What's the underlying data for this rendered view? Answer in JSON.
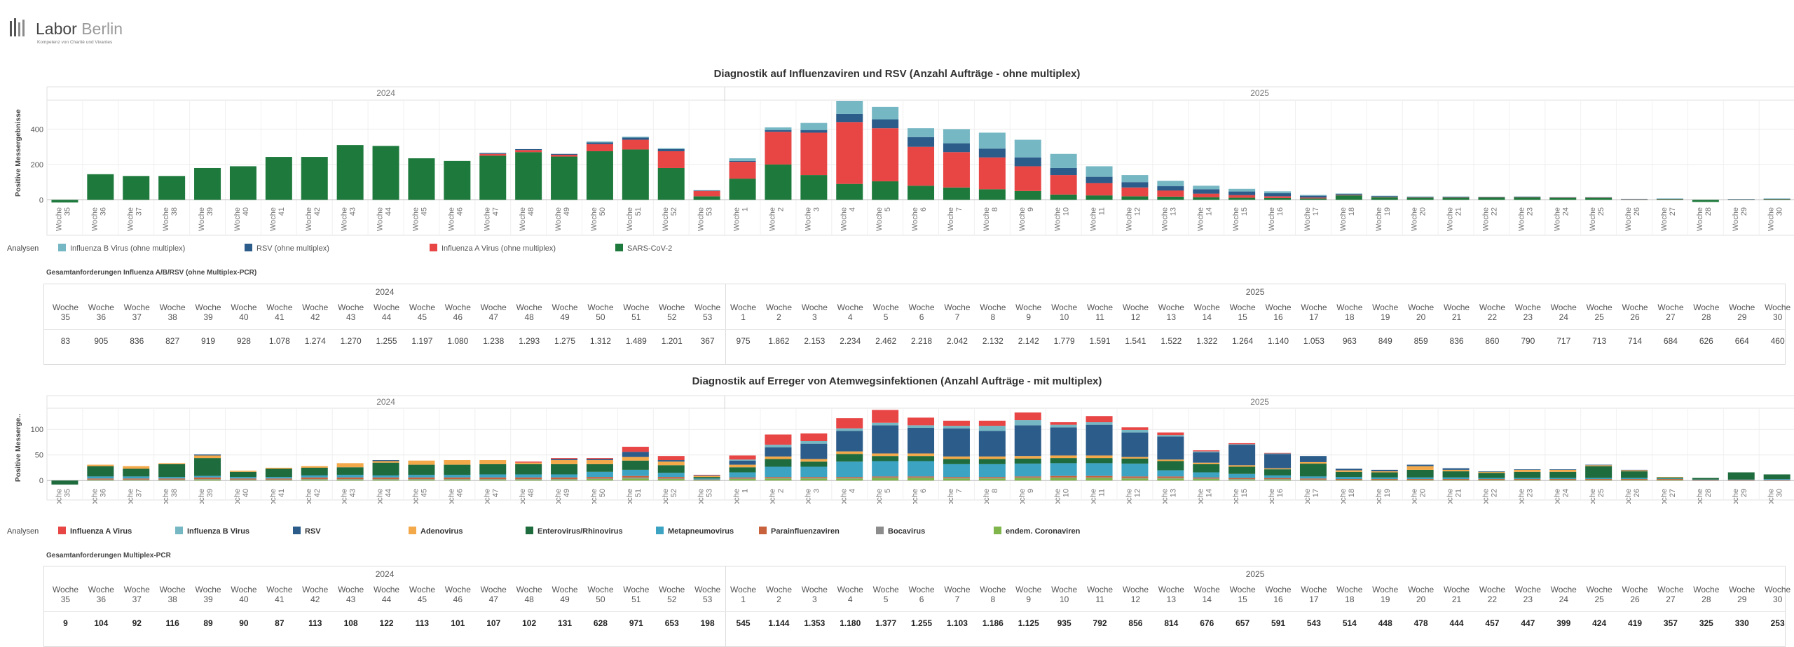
{
  "logo": {
    "name_a": "Labor",
    "name_b": "Berlin",
    "tagline": "Kompetenz von Charité und Vivantes"
  },
  "chart1": {
    "title": "Diagnostik auf Influenzaviren und RSV (Anzahl Aufträge - ohne multiplex)",
    "legend_label": "Analysen"
  },
  "table1": {
    "caption": "Gesamtanforderungen Influenza A/B/RSV (ohne Multiplex-PCR)",
    "values": [
      "83",
      "905",
      "836",
      "827",
      "919",
      "928",
      "1.078",
      "1.274",
      "1.270",
      "1.255",
      "1.197",
      "1.080",
      "1.238",
      "1.293",
      "1.275",
      "1.312",
      "1.489",
      "1.201",
      "367",
      "975",
      "1.862",
      "2.153",
      "2.234",
      "2.462",
      "2.218",
      "2.042",
      "2.132",
      "2.142",
      "1.779",
      "1.591",
      "1.541",
      "1.522",
      "1.322",
      "1.264",
      "1.140",
      "1.053",
      "963",
      "849",
      "859",
      "836",
      "860",
      "790",
      "717",
      "713",
      "714",
      "684",
      "626",
      "664",
      "460"
    ]
  },
  "chart2": {
    "title": "Diagnostik auf Erreger von Atemwegsinfektionen (Anzahl Aufträge - mit multiplex)",
    "legend_label": "Analysen"
  },
  "table2": {
    "caption": "Gesamtanforderungen Multiplex-PCR",
    "values": [
      "9",
      "104",
      "92",
      "116",
      "89",
      "90",
      "87",
      "113",
      "108",
      "122",
      "113",
      "101",
      "107",
      "102",
      "131",
      "628",
      "971",
      "653",
      "198",
      "545",
      "1.144",
      "1.353",
      "1.180",
      "1.377",
      "1.255",
      "1.103",
      "1.186",
      "1.125",
      "935",
      "792",
      "856",
      "814",
      "676",
      "657",
      "591",
      "543",
      "514",
      "448",
      "478",
      "444",
      "457",
      "447",
      "399",
      "424",
      "419",
      "357",
      "325",
      "330",
      "253"
    ]
  },
  "chart_data": [
    {
      "type": "bar",
      "stacked": true,
      "title": "Diagnostik auf Influenzaviren und RSV (Anzahl Aufträge - ohne multiplex)",
      "ylabel": "Positive Messergebnisse",
      "ylim": [
        -30,
        560
      ],
      "yticks": [
        0,
        200,
        400
      ],
      "year_headers": [
        "2024",
        "2025"
      ],
      "week_label": "Woche",
      "categories": [
        "35",
        "36",
        "37",
        "38",
        "39",
        "40",
        "41",
        "42",
        "43",
        "44",
        "45",
        "46",
        "47",
        "48",
        "49",
        "50",
        "51",
        "52",
        "53",
        "1",
        "2",
        "3",
        "4",
        "5",
        "6",
        "7",
        "8",
        "9",
        "10",
        "11",
        "12",
        "13",
        "14",
        "15",
        "16",
        "17",
        "18",
        "19",
        "20",
        "21",
        "22",
        "23",
        "24",
        "25",
        "26",
        "27",
        "28",
        "29",
        "30"
      ],
      "series": [
        {
          "name": "SARS-CoV-2",
          "color": "#1e7a3c",
          "values": [
            -15,
            145,
            135,
            135,
            180,
            190,
            243,
            243,
            310,
            305,
            235,
            220,
            250,
            270,
            245,
            275,
            285,
            180,
            20,
            120,
            200,
            140,
            90,
            105,
            80,
            70,
            60,
            50,
            30,
            25,
            20,
            18,
            15,
            12,
            10,
            8,
            25,
            15,
            12,
            13,
            14,
            15,
            12,
            12,
            2,
            5,
            -12,
            2,
            5
          ]
        },
        {
          "name": "Influenza A Virus (ohne multiplex)",
          "color": "#e84545",
          "values": [
            0,
            0,
            0,
            0,
            0,
            0,
            0,
            0,
            0,
            0,
            0,
            0,
            10,
            12,
            10,
            40,
            55,
            95,
            30,
            95,
            185,
            240,
            350,
            300,
            220,
            200,
            180,
            140,
            110,
            70,
            50,
            35,
            20,
            15,
            10,
            5,
            3,
            2,
            2,
            1,
            1,
            1,
            1,
            1,
            1,
            1,
            0,
            1,
            1
          ]
        },
        {
          "name": "RSV (ohne multiplex)",
          "color": "#2b5c8a",
          "values": [
            0,
            0,
            0,
            0,
            0,
            0,
            0,
            0,
            0,
            0,
            0,
            0,
            5,
            5,
            5,
            10,
            12,
            12,
            3,
            5,
            10,
            15,
            45,
            50,
            55,
            50,
            50,
            50,
            40,
            35,
            30,
            25,
            25,
            20,
            18,
            10,
            5,
            4,
            3,
            3,
            2,
            2,
            2,
            2,
            2,
            1,
            0,
            1,
            1
          ]
        },
        {
          "name": "Influenza B Virus (ohne multiplex)",
          "color": "#76b7c4",
          "values": [
            0,
            0,
            0,
            0,
            0,
            0,
            0,
            0,
            0,
            0,
            0,
            0,
            0,
            0,
            0,
            5,
            5,
            5,
            2,
            15,
            15,
            40,
            75,
            70,
            50,
            80,
            90,
            100,
            80,
            60,
            40,
            30,
            20,
            15,
            10,
            5,
            3,
            2,
            2,
            2,
            1,
            1,
            1,
            1,
            1,
            1,
            0,
            1,
            1
          ]
        }
      ],
      "legend_order": [
        "Influenza B Virus (ohne multiplex)",
        "RSV (ohne multiplex)",
        "Influenza A Virus (ohne multiplex)",
        "SARS-CoV-2"
      ],
      "grid": true,
      "legend_position": "bottom"
    },
    {
      "type": "bar",
      "stacked": true,
      "title": "Diagnostik auf Erreger von Atemwegsinfektionen (Anzahl Aufträge - mit multiplex)",
      "ylabel": "Positive Messerge..",
      "ylim": [
        -12,
        140
      ],
      "yticks": [
        0,
        50,
        100
      ],
      "year_headers": [
        "2024",
        "2025"
      ],
      "week_label": "Woche",
      "categories": [
        "35",
        "36",
        "37",
        "38",
        "39",
        "40",
        "41",
        "42",
        "43",
        "44",
        "45",
        "46",
        "47",
        "48",
        "49",
        "50",
        "51",
        "52",
        "53",
        "1",
        "2",
        "3",
        "4",
        "5",
        "6",
        "7",
        "8",
        "9",
        "10",
        "11",
        "12",
        "13",
        "14",
        "15",
        "16",
        "17",
        "18",
        "19",
        "20",
        "21",
        "22",
        "23",
        "24",
        "25",
        "26",
        "27",
        "28",
        "29",
        "30"
      ],
      "series": [
        {
          "name": "endem. Coronaviren",
          "color": "#7fb54a",
          "values": [
            0,
            1,
            1,
            1,
            2,
            1,
            1,
            2,
            2,
            2,
            2,
            2,
            2,
            2,
            2,
            3,
            4,
            3,
            1,
            3,
            4,
            4,
            4,
            5,
            5,
            4,
            4,
            5,
            5,
            5,
            4,
            4,
            3,
            2,
            2,
            1,
            1,
            1,
            1,
            1,
            1,
            1,
            1,
            1,
            1,
            1,
            0,
            0,
            0
          ]
        },
        {
          "name": "Bocavirus",
          "color": "#8c8c8c",
          "values": [
            0,
            1,
            1,
            1,
            1,
            1,
            1,
            1,
            1,
            1,
            1,
            1,
            1,
            1,
            1,
            1,
            2,
            1,
            0,
            1,
            1,
            1,
            1,
            1,
            1,
            1,
            1,
            1,
            1,
            1,
            1,
            1,
            1,
            1,
            1,
            1,
            0,
            0,
            0,
            0,
            0,
            0,
            0,
            0,
            0,
            0,
            0,
            0,
            0
          ]
        },
        {
          "name": "Parainfluenzaviren",
          "color": "#c8623d",
          "values": [
            0,
            2,
            2,
            2,
            3,
            2,
            2,
            3,
            3,
            3,
            3,
            3,
            3,
            3,
            3,
            3,
            3,
            3,
            1,
            2,
            2,
            2,
            2,
            2,
            2,
            2,
            2,
            2,
            3,
            3,
            3,
            3,
            2,
            2,
            2,
            2,
            2,
            2,
            2,
            2,
            2,
            2,
            2,
            2,
            2,
            2,
            1,
            1,
            1
          ]
        },
        {
          "name": "Metapneumovirus",
          "color": "#3da3c2",
          "values": [
            0,
            4,
            4,
            3,
            3,
            3,
            3,
            4,
            5,
            4,
            5,
            5,
            6,
            6,
            6,
            10,
            12,
            8,
            2,
            10,
            20,
            20,
            30,
            30,
            30,
            25,
            25,
            25,
            25,
            25,
            25,
            12,
            10,
            8,
            5,
            4,
            4,
            3,
            3,
            3,
            2,
            2,
            2,
            2,
            2,
            1,
            1,
            1,
            2
          ]
        },
        {
          "name": "Enterovirus/Rhinovirus",
          "color": "#1e6b3e",
          "values": [
            -8,
            20,
            15,
            25,
            35,
            10,
            16,
            15,
            15,
            25,
            20,
            20,
            20,
            20,
            20,
            15,
            18,
            15,
            3,
            10,
            15,
            10,
            15,
            10,
            10,
            10,
            10,
            10,
            10,
            10,
            10,
            18,
            16,
            14,
            12,
            25,
            10,
            10,
            15,
            12,
            10,
            12,
            12,
            23,
            13,
            2,
            3,
            14,
            9
          ]
        },
        {
          "name": "Adenovirus",
          "color": "#f3a84a",
          "values": [
            0,
            3,
            5,
            2,
            5,
            2,
            2,
            3,
            8,
            3,
            8,
            9,
            8,
            3,
            8,
            8,
            7,
            7,
            2,
            5,
            5,
            5,
            5,
            5,
            5,
            5,
            5,
            5,
            5,
            5,
            3,
            3,
            3,
            3,
            2,
            3,
            3,
            2,
            7,
            3,
            2,
            4,
            4,
            2,
            2,
            1,
            0,
            0,
            0
          ]
        },
        {
          "name": "RSV",
          "color": "#2b5c8a",
          "values": [
            0,
            0,
            0,
            0,
            2,
            0,
            0,
            0,
            0,
            2,
            0,
            0,
            0,
            0,
            2,
            2,
            10,
            3,
            1,
            8,
            18,
            30,
            40,
            55,
            50,
            55,
            50,
            60,
            55,
            60,
            48,
            45,
            20,
            40,
            28,
            12,
            3,
            3,
            3,
            3,
            1,
            1,
            1,
            1,
            1,
            0,
            0,
            0,
            0
          ]
        },
        {
          "name": "Influenza B Virus",
          "color": "#76b7c4",
          "values": [
            0,
            0,
            0,
            0,
            0,
            0,
            0,
            0,
            0,
            0,
            0,
            0,
            0,
            0,
            0,
            0,
            0,
            0,
            0,
            2,
            5,
            5,
            5,
            5,
            5,
            5,
            10,
            10,
            5,
            5,
            5,
            3,
            2,
            1,
            1,
            0,
            0,
            0,
            0,
            0,
            0,
            0,
            0,
            0,
            0,
            0,
            0,
            0,
            0
          ]
        },
        {
          "name": "Influenza A Virus",
          "color": "#e84545",
          "values": [
            0,
            0,
            0,
            0,
            0,
            0,
            0,
            0,
            0,
            0,
            0,
            0,
            0,
            2,
            2,
            2,
            10,
            8,
            1,
            8,
            20,
            15,
            20,
            25,
            15,
            10,
            10,
            15,
            5,
            12,
            5,
            5,
            2,
            2,
            1,
            0,
            0,
            0,
            0,
            0,
            0,
            0,
            0,
            0,
            0,
            0,
            0,
            0,
            0
          ]
        }
      ],
      "legend_order": [
        "Influenza A Virus",
        "Influenza B Virus",
        "RSV",
        "Adenovirus",
        "Enterovirus/Rhinovirus",
        "Metapneumovirus",
        "Parainfluenzaviren",
        "Bocavirus",
        "endem. Coronaviren"
      ],
      "grid": true,
      "legend_position": "bottom"
    }
  ]
}
